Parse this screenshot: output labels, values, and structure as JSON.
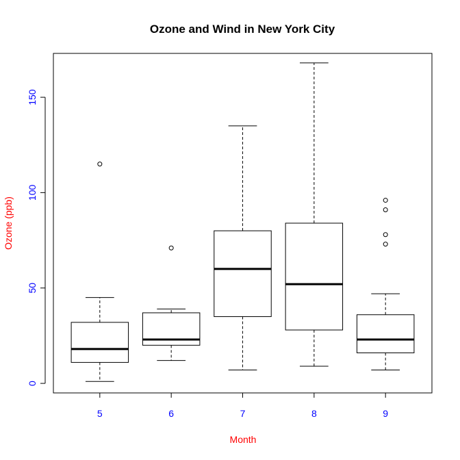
{
  "chart_data": {
    "type": "boxplot",
    "title": "Ozone and Wind in New York City",
    "xlabel": "Month",
    "ylabel": "Ozone (ppb)",
    "ylim": [
      -5,
      173
    ],
    "yticks": [
      0,
      50,
      100,
      150
    ],
    "categories": [
      "5",
      "6",
      "7",
      "8",
      "9"
    ],
    "boxes": [
      {
        "category": "5",
        "whisker_low": 1,
        "q1": 11,
        "median": 18,
        "q3": 32,
        "whisker_high": 45,
        "outliers": [
          115
        ]
      },
      {
        "category": "6",
        "whisker_low": 12,
        "q1": 20,
        "median": 23,
        "q3": 37,
        "whisker_high": 39,
        "outliers": [
          71
        ]
      },
      {
        "category": "7",
        "whisker_low": 7,
        "q1": 35,
        "median": 60,
        "q3": 80,
        "whisker_high": 135,
        "outliers": []
      },
      {
        "category": "8",
        "whisker_low": 9,
        "q1": 28,
        "median": 52,
        "q3": 84,
        "whisker_high": 168,
        "outliers": []
      },
      {
        "category": "9",
        "whisker_low": 7,
        "q1": 16,
        "median": 23,
        "q3": 36,
        "whisker_high": 47,
        "outliers": [
          73,
          78,
          91,
          96
        ]
      }
    ],
    "colors": {
      "axis_labels": "#ff0000",
      "tick_labels": "#0000ff",
      "boxes": "#000000"
    },
    "grid": false
  }
}
